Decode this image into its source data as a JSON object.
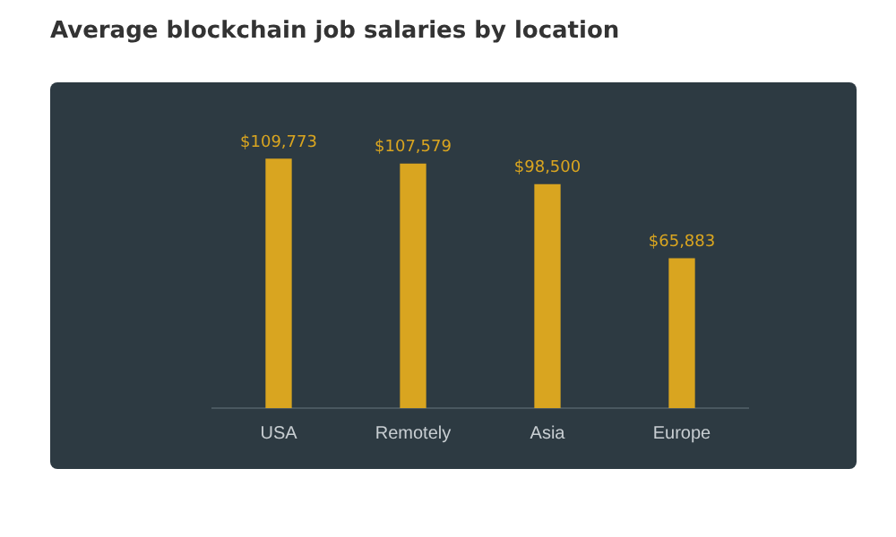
{
  "chart_data": {
    "type": "bar",
    "title": "Average blockchain job salaries by location",
    "categories": [
      "USA",
      "Remotely",
      "Asia",
      "Europe"
    ],
    "values": [
      109773,
      107579,
      98500,
      65883
    ],
    "value_labels": [
      "$109,773",
      "$107,579",
      "$98,500",
      "$65,883"
    ],
    "color": "#d9a520",
    "grid": false,
    "legend": false
  }
}
